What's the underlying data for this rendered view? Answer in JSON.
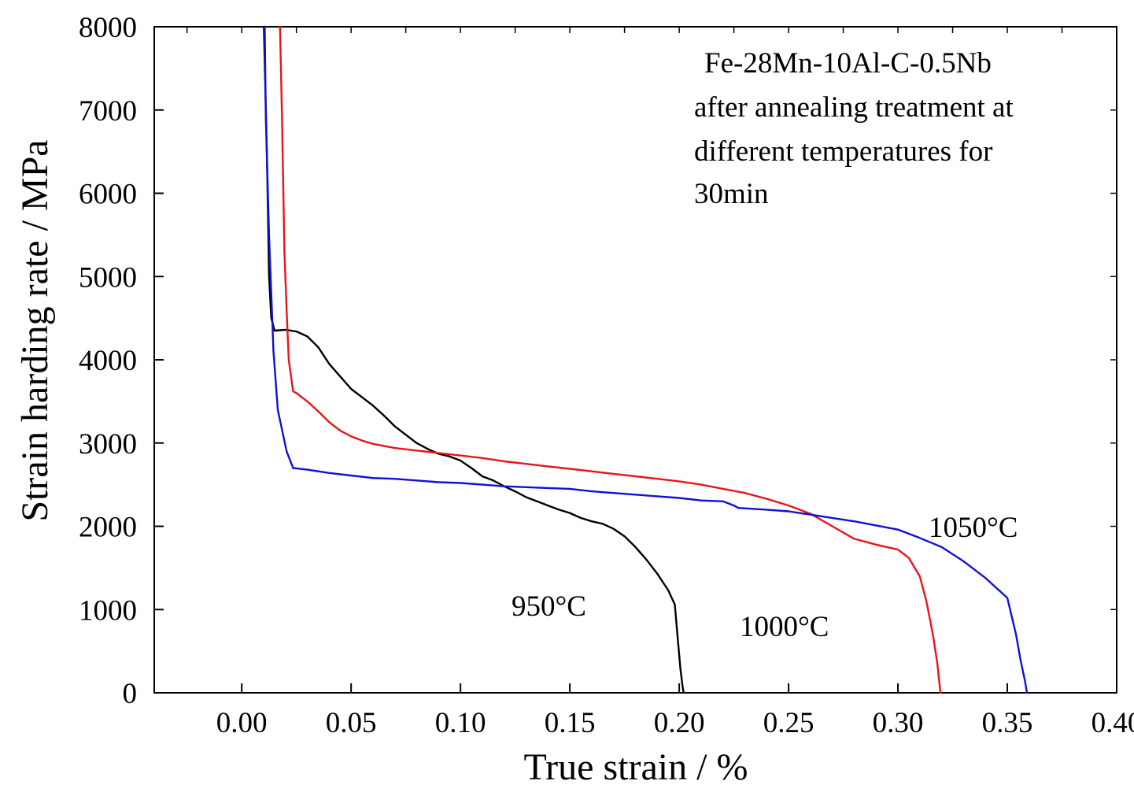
{
  "chart_data": {
    "type": "line",
    "title": "",
    "xlabel": "True strain / %",
    "ylabel": "Strain harding rate / MPa",
    "xlim": [
      -0.04,
      0.4
    ],
    "ylim": [
      0,
      8000
    ],
    "xticks": [
      0.0,
      0.05,
      0.1,
      0.15,
      0.2,
      0.25,
      0.3,
      0.35,
      0.4
    ],
    "xtick_labels": [
      "0.00",
      "0.05",
      "0.10",
      "0.15",
      "0.20",
      "0.25",
      "0.30",
      "0.35",
      "0.40"
    ],
    "yticks": [
      0,
      1000,
      2000,
      3000,
      4000,
      5000,
      6000,
      7000,
      8000
    ],
    "ytick_labels": [
      "0",
      "1000",
      "2000",
      "3000",
      "4000",
      "5000",
      "6000",
      "7000",
      "8000"
    ],
    "annotation": [
      "Fe-28Mn-10Al-C-0.5Nb",
      "after annealing treatment at",
      "different temperatures for",
      "30min"
    ],
    "grid": false,
    "series": [
      {
        "name": "950°C",
        "color": "#000000",
        "x": [
          0.0101,
          0.0115,
          0.0125,
          0.0135,
          0.015,
          0.02,
          0.025,
          0.03,
          0.035,
          0.04,
          0.045,
          0.05,
          0.055,
          0.06,
          0.065,
          0.07,
          0.075,
          0.08,
          0.085,
          0.09,
          0.095,
          0.1,
          0.105,
          0.11,
          0.115,
          0.12,
          0.125,
          0.13,
          0.135,
          0.14,
          0.145,
          0.15,
          0.155,
          0.16,
          0.165,
          0.17,
          0.175,
          0.18,
          0.185,
          0.19,
          0.195,
          0.198,
          0.1995,
          0.2005,
          0.2015,
          0.202
        ],
        "y": [
          8000,
          6500,
          5000,
          4500,
          4350,
          4360,
          4340,
          4280,
          4150,
          3950,
          3800,
          3650,
          3550,
          3450,
          3330,
          3200,
          3100,
          3000,
          2930,
          2870,
          2840,
          2790,
          2700,
          2600,
          2550,
          2480,
          2420,
          2350,
          2300,
          2250,
          2200,
          2160,
          2100,
          2060,
          2030,
          1970,
          1880,
          1750,
          1600,
          1430,
          1230,
          1060,
          600,
          300,
          80,
          0
        ]
      },
      {
        "name": "1000°C",
        "color": "#e8141b",
        "x": [
          0.0175,
          0.0185,
          0.0195,
          0.0205,
          0.0215,
          0.0235,
          0.025,
          0.03,
          0.035,
          0.04,
          0.045,
          0.05,
          0.055,
          0.06,
          0.07,
          0.08,
          0.09,
          0.1,
          0.11,
          0.12,
          0.13,
          0.14,
          0.15,
          0.16,
          0.17,
          0.18,
          0.19,
          0.2,
          0.21,
          0.22,
          0.23,
          0.24,
          0.25,
          0.26,
          0.27,
          0.28,
          0.29,
          0.3,
          0.305,
          0.31,
          0.313,
          0.316,
          0.318,
          0.319,
          0.3195
        ],
        "y": [
          8000,
          6800,
          5300,
          4600,
          4000,
          3620,
          3600,
          3500,
          3380,
          3250,
          3150,
          3080,
          3030,
          2990,
          2940,
          2910,
          2880,
          2850,
          2820,
          2780,
          2750,
          2720,
          2690,
          2660,
          2630,
          2600,
          2570,
          2540,
          2500,
          2450,
          2400,
          2330,
          2250,
          2150,
          2000,
          1850,
          1780,
          1720,
          1620,
          1400,
          1100,
          700,
          350,
          100,
          0
        ]
      },
      {
        "name": "1050°C",
        "color": "#1010dd",
        "x": [
          0.0105,
          0.011,
          0.0125,
          0.0145,
          0.0165,
          0.0185,
          0.0205,
          0.0235,
          0.03,
          0.04,
          0.05,
          0.06,
          0.07,
          0.08,
          0.09,
          0.1,
          0.11,
          0.12,
          0.13,
          0.14,
          0.15,
          0.16,
          0.17,
          0.18,
          0.19,
          0.2,
          0.21,
          0.22,
          0.225,
          0.227,
          0.24,
          0.25,
          0.26,
          0.27,
          0.28,
          0.29,
          0.3,
          0.31,
          0.32,
          0.33,
          0.34,
          0.35,
          0.354,
          0.356,
          0.358,
          0.359
        ],
        "y": [
          8000,
          6900,
          5500,
          4100,
          3400,
          3150,
          2900,
          2700,
          2680,
          2640,
          2610,
          2580,
          2570,
          2550,
          2530,
          2520,
          2500,
          2480,
          2470,
          2460,
          2450,
          2420,
          2400,
          2380,
          2360,
          2340,
          2310,
          2300,
          2250,
          2220,
          2200,
          2180,
          2140,
          2100,
          2060,
          2010,
          1960,
          1860,
          1750,
          1580,
          1380,
          1140,
          700,
          400,
          150,
          0
        ]
      }
    ]
  }
}
